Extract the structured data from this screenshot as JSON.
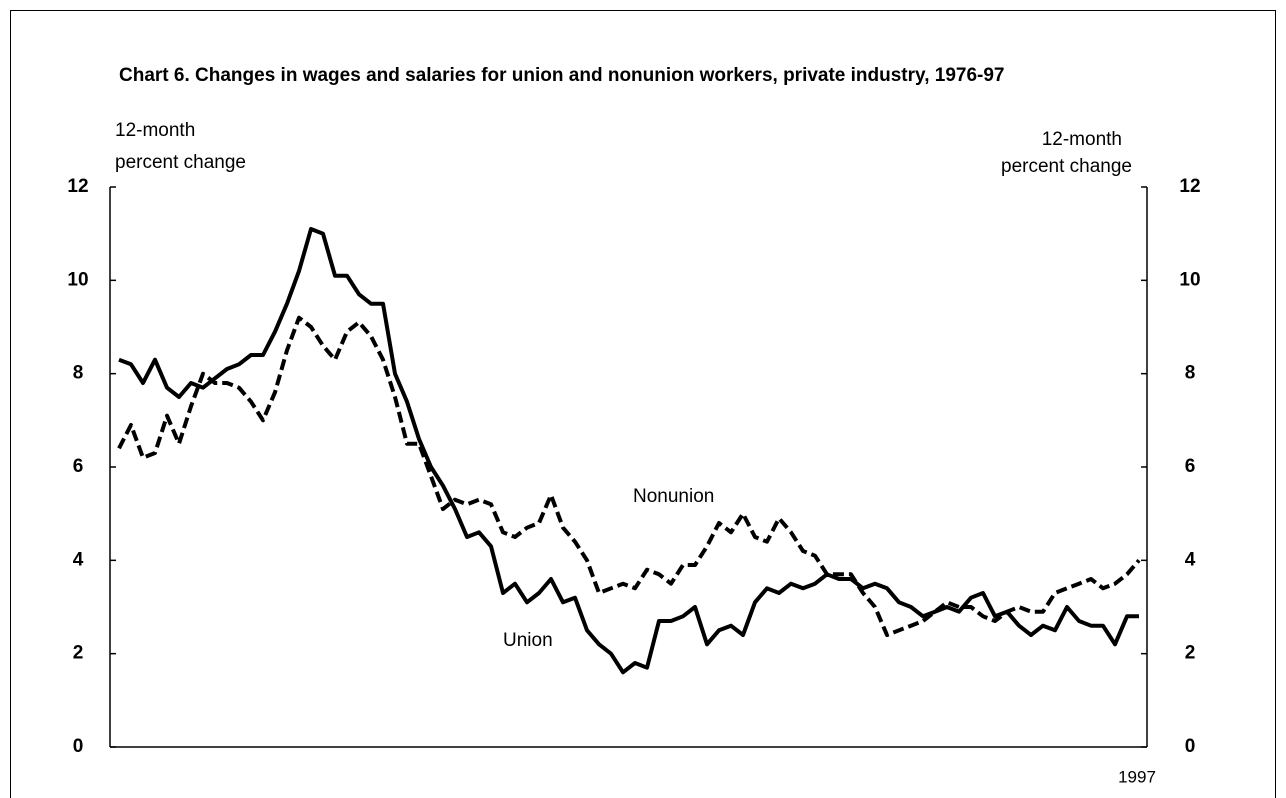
{
  "chart_data": {
    "type": "line",
    "title": "Chart 6. Changes in wages and salaries for union and nonunion workers, private industry, 1976-97",
    "y_label": [
      "12-month",
      "percent change"
    ],
    "y2_label": [
      "12-month",
      "percent change"
    ],
    "categories": [
      null,
      null,
      null,
      null,
      null,
      null,
      null,
      null,
      null,
      null,
      null,
      null,
      null,
      null,
      null,
      null,
      null,
      null,
      null,
      null,
      null,
      null,
      null,
      null,
      null,
      null,
      null,
      null,
      null,
      null,
      null,
      null,
      null,
      null,
      null,
      null,
      null,
      null,
      null,
      null,
      null,
      null,
      null,
      null,
      null,
      null,
      null,
      null,
      null,
      null,
      null,
      null,
      null,
      null,
      null,
      null,
      null,
      null,
      null,
      null,
      null,
      null,
      null,
      null,
      null,
      null,
      null,
      null,
      null,
      null,
      null,
      null,
      null,
      null,
      null,
      null,
      null,
      null,
      null,
      null,
      null,
      null,
      null,
      null,
      null,
      "1997"
    ],
    "series": [
      {
        "name": "Union",
        "color": "#000000",
        "dashed": false,
        "values": [
          8.3,
          8.2,
          7.8,
          8.3,
          7.7,
          7.5,
          7.8,
          7.7,
          7.9,
          8.1,
          8.2,
          8.4,
          8.4,
          8.9,
          9.5,
          10.2,
          11.1,
          11.0,
          10.1,
          10.1,
          9.7,
          9.5,
          9.5,
          8.0,
          7.4,
          6.6,
          6.0,
          5.6,
          5.1,
          4.5,
          4.6,
          4.3,
          3.3,
          3.5,
          3.1,
          3.3,
          3.6,
          3.1,
          3.2,
          2.5,
          2.2,
          2.0,
          1.6,
          1.8,
          1.7,
          2.7,
          2.7,
          2.8,
          3.0,
          2.2,
          2.5,
          2.6,
          2.4,
          3.1,
          3.4,
          3.3,
          3.5,
          3.4,
          3.5,
          3.7,
          3.6,
          3.6,
          3.4,
          3.5,
          3.4,
          3.1,
          3.0,
          2.8,
          2.9,
          3.0,
          2.9,
          3.2,
          3.3,
          2.8,
          2.9,
          2.6,
          2.4,
          2.6,
          2.5,
          3.0,
          2.7,
          2.6,
          2.6,
          2.2,
          2.8,
          2.8
        ]
      },
      {
        "name": "Nonunion",
        "color": "#000000",
        "dashed": true,
        "values": [
          6.4,
          6.9,
          6.2,
          6.3,
          7.1,
          6.5,
          7.3,
          8.0,
          7.8,
          7.8,
          7.7,
          7.4,
          7.0,
          7.6,
          8.5,
          9.2,
          9.0,
          8.6,
          8.3,
          8.9,
          9.1,
          8.8,
          8.3,
          7.5,
          6.5,
          6.5,
          5.8,
          5.1,
          5.3,
          5.2,
          5.3,
          5.2,
          4.6,
          4.5,
          4.7,
          4.8,
          5.4,
          4.7,
          4.4,
          4.0,
          3.3,
          3.4,
          3.5,
          3.4,
          3.8,
          3.7,
          3.5,
          3.9,
          3.9,
          4.3,
          4.8,
          4.6,
          5.0,
          4.5,
          4.4,
          4.9,
          4.6,
          4.2,
          4.1,
          3.7,
          3.7,
          3.7,
          3.3,
          3.0,
          2.4,
          2.5,
          2.6,
          2.7,
          2.9,
          3.1,
          3.0,
          3.0,
          2.8,
          2.7,
          2.9,
          3.0,
          2.9,
          2.9,
          3.3,
          3.4,
          3.5,
          3.6,
          3.4,
          3.5,
          3.7,
          4.0
        ]
      }
    ],
    "ylim": [
      0,
      12
    ],
    "yticks": [
      0,
      2,
      4,
      6,
      8,
      10,
      12
    ],
    "y2lim": [
      0,
      12
    ],
    "y2ticks": [
      0,
      2,
      4,
      6,
      8,
      10,
      12
    ],
    "grid": false
  }
}
